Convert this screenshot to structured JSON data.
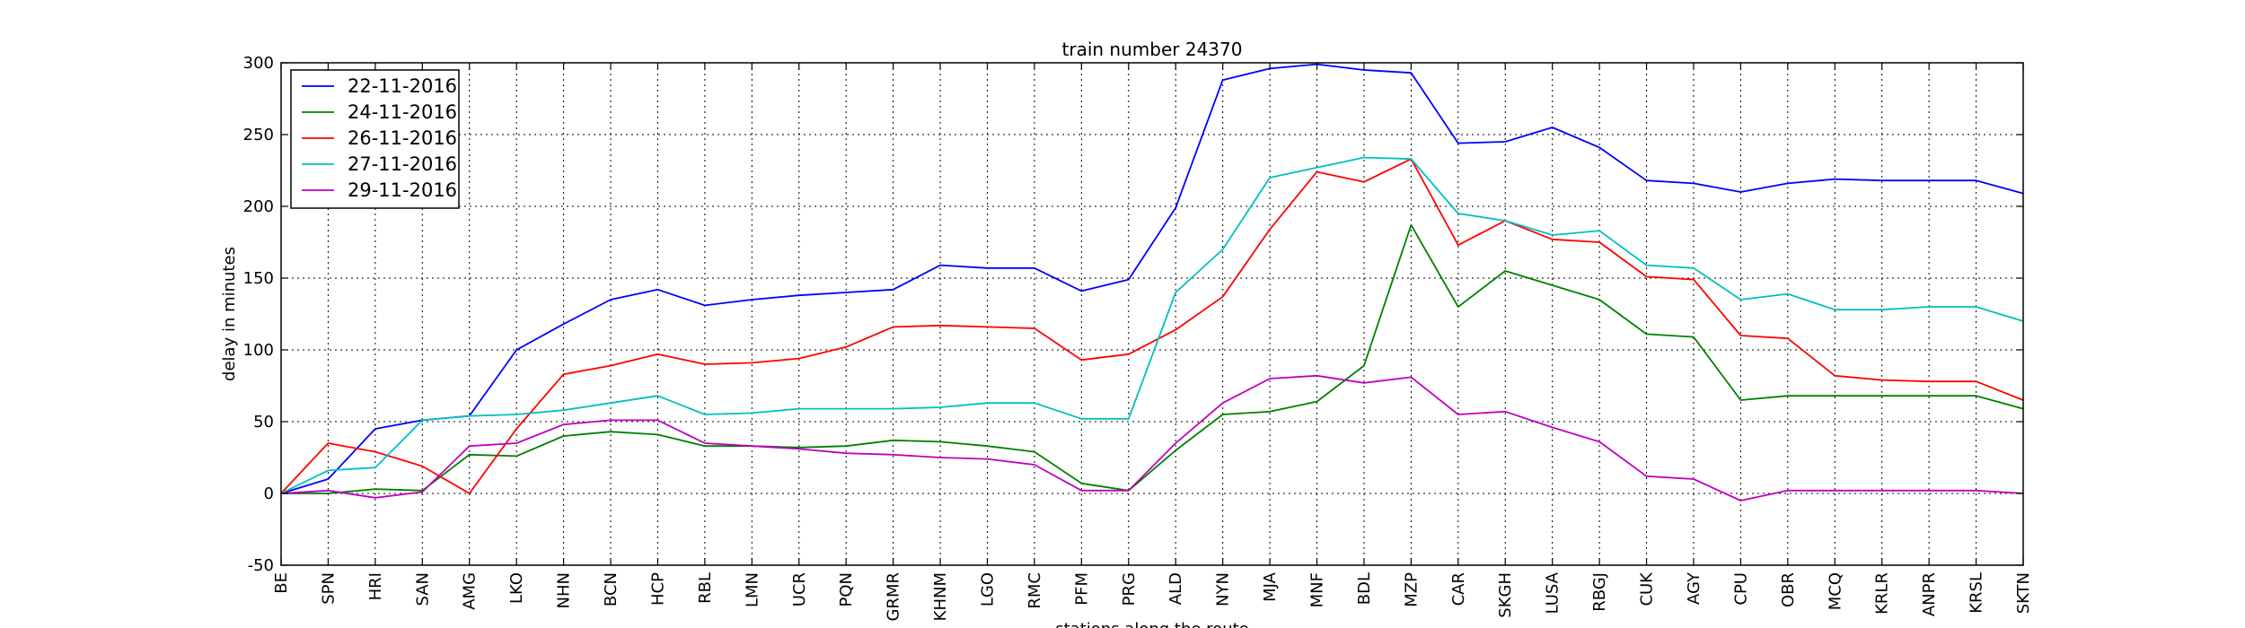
{
  "chart_data": {
    "type": "line",
    "title": "train number 24370",
    "xlabel": "stations along the route",
    "ylabel": "delay in minutes",
    "ylim": [
      -50,
      300
    ],
    "yticks": [
      -50,
      0,
      50,
      100,
      150,
      200,
      250,
      300
    ],
    "grid": true,
    "legend_position": "top-left",
    "categories": [
      "BE",
      "SPN",
      "HRI",
      "SAN",
      "AMG",
      "LKO",
      "NHN",
      "BCN",
      "HCP",
      "RBL",
      "LMN",
      "UCR",
      "PQN",
      "GRMR",
      "KHNM",
      "LGO",
      "RMC",
      "PFM",
      "PRG",
      "ALD",
      "NYN",
      "MJA",
      "MNF",
      "BDL",
      "MZP",
      "CAR",
      "SKGH",
      "LUSA",
      "RBGJ",
      "CUK",
      "AGY",
      "CPU",
      "OBR",
      "MCQ",
      "KRLR",
      "ANPR",
      "KRSL",
      "SKTN"
    ],
    "series": [
      {
        "name": "22-11-2016",
        "color": "#0000ff",
        "values": [
          0,
          10,
          45,
          51,
          54,
          100,
          118,
          135,
          142,
          131,
          135,
          138,
          140,
          142,
          159,
          157,
          157,
          141,
          149,
          199,
          288,
          296,
          299,
          295,
          293,
          244,
          245,
          255,
          241,
          218,
          216,
          210,
          216,
          219,
          218,
          218,
          218,
          209
        ]
      },
      {
        "name": "24-11-2016",
        "color": "#008000",
        "values": [
          0,
          0,
          3,
          2,
          27,
          26,
          40,
          43,
          41,
          33,
          33,
          32,
          33,
          37,
          36,
          33,
          29,
          7,
          2,
          30,
          55,
          57,
          64,
          89,
          187,
          130,
          155,
          145,
          135,
          111,
          109,
          65,
          68,
          68,
          68,
          68,
          68,
          59
        ]
      },
      {
        "name": "26-11-2016",
        "color": "#ff0000",
        "values": [
          0,
          35,
          29,
          19,
          0,
          45,
          83,
          89,
          97,
          90,
          91,
          94,
          102,
          116,
          117,
          116,
          115,
          93,
          97,
          114,
          137,
          184,
          224,
          217,
          233,
          173,
          190,
          177,
          175,
          151,
          149,
          110,
          108,
          82,
          79,
          78,
          78,
          65
        ]
      },
      {
        "name": "27-11-2016",
        "color": "#00bfbf",
        "values": [
          0,
          16,
          18,
          51,
          54,
          55,
          58,
          63,
          68,
          55,
          56,
          59,
          59,
          59,
          60,
          63,
          63,
          52,
          52,
          140,
          170,
          220,
          227,
          234,
          233,
          195,
          190,
          180,
          183,
          159,
          157,
          135,
          139,
          128,
          128,
          130,
          130,
          120
        ]
      },
      {
        "name": "29-11-2016",
        "color": "#bf00bf",
        "values": [
          0,
          2,
          -3,
          1,
          33,
          35,
          48,
          51,
          51,
          35,
          33,
          31,
          28,
          27,
          25,
          24,
          20,
          2,
          2,
          35,
          63,
          80,
          82,
          77,
          81,
          55,
          57,
          46,
          36,
          12,
          10,
          -5,
          2,
          2,
          2,
          2,
          2,
          0
        ]
      }
    ]
  }
}
